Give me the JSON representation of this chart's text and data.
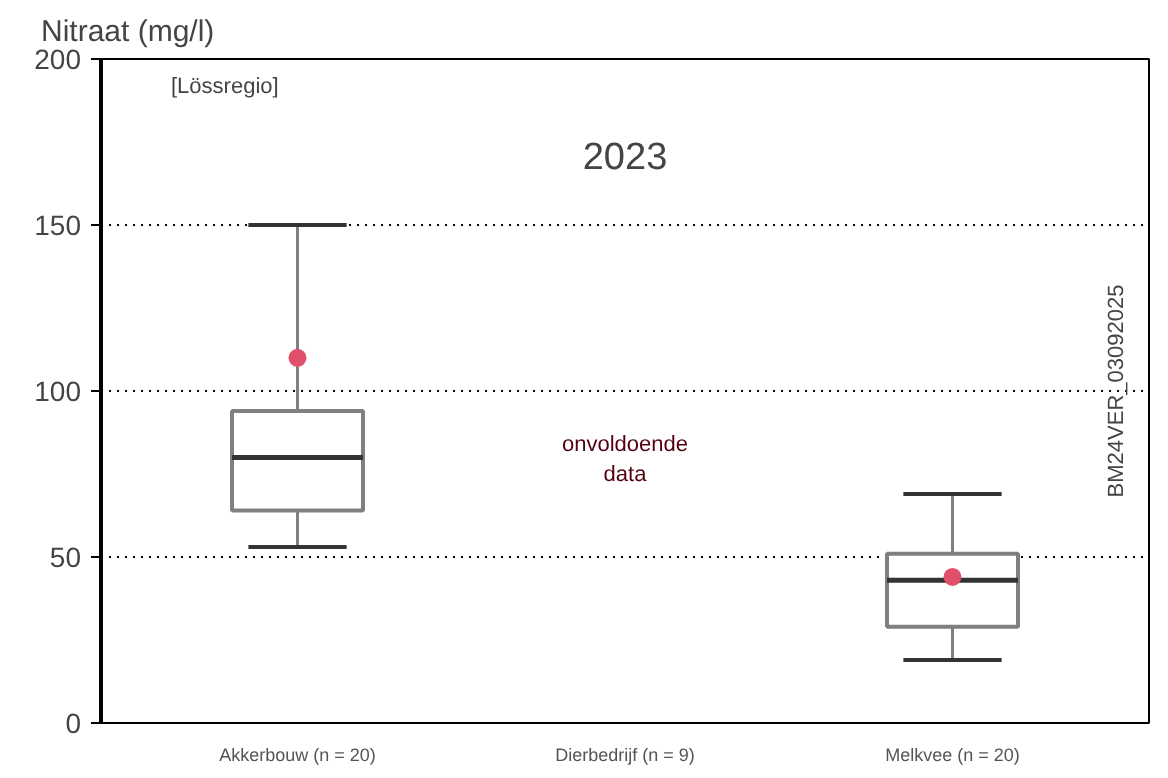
{
  "chart_data": {
    "type": "box",
    "title": "2023",
    "subtitle": "[Lössregio]",
    "ylabel": "Nitraat (mg/l)",
    "categories": [
      "Akkerbouw (n = 20)",
      "Dierbedrijf (n = 9)",
      "Melkvee (n = 20)"
    ],
    "series": [
      {
        "color": "#808080",
        "boxes": [
          {
            "low": 53,
            "q1": 64,
            "median": 80,
            "q3": 94,
            "high": 150,
            "mean": 110
          },
          null,
          {
            "low": 19,
            "q1": 29,
            "median": 43,
            "q3": 51,
            "high": 69,
            "mean": 44
          }
        ]
      }
    ],
    "ylim": [
      0,
      200
    ],
    "yticks": [
      0,
      50,
      100,
      150,
      200
    ],
    "grid": "y",
    "annotations": [
      "BM24VER_03092025",
      "onvoldoende\ndata"
    ]
  }
}
